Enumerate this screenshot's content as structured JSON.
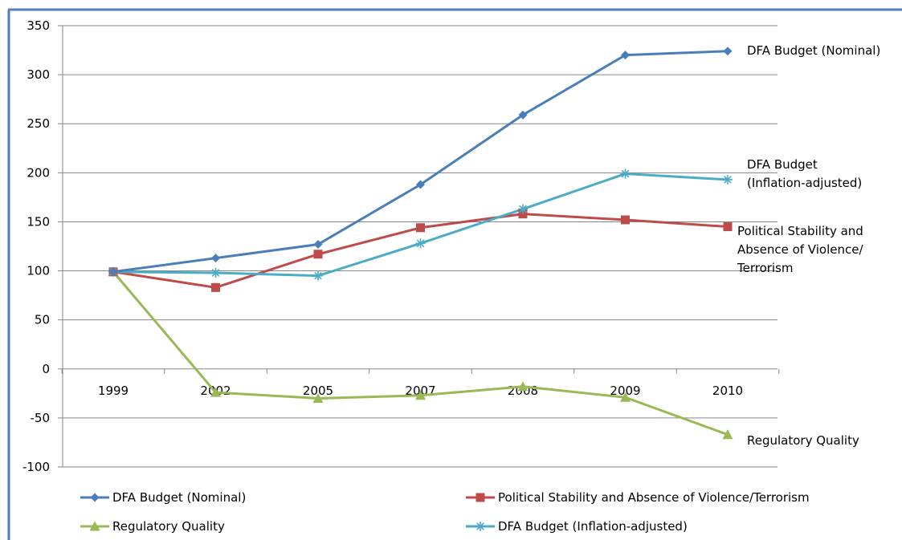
{
  "chart_data": {
    "type": "line",
    "categories": [
      "1999",
      "2002",
      "2005",
      "2007",
      "2008",
      "2009",
      "2010"
    ],
    "ylim": [
      -100,
      350
    ],
    "yticks": [
      -100,
      -50,
      0,
      50,
      100,
      150,
      200,
      250,
      300,
      350
    ],
    "grid": true,
    "legend_position": "bottom",
    "series": [
      {
        "name": "DFA Budget (Nominal)",
        "end_label": [
          "DFA Budget (Nominal)"
        ],
        "marker": "diamond",
        "color": "#4A7EBB",
        "values": [
          99,
          113,
          127,
          188,
          259,
          320,
          324
        ]
      },
      {
        "name": "Political Stability and Absence of Violence/Terrorism",
        "end_label": [
          "Political Stability and",
          "Absence of Violence/",
          "Terrorism"
        ],
        "marker": "square",
        "color": "#BE4B48",
        "values": [
          99,
          83,
          117,
          144,
          158,
          152,
          145
        ]
      },
      {
        "name": "Regulatory Quality",
        "end_label": [
          "Regulatory Quality"
        ],
        "marker": "triangle",
        "color": "#98B954",
        "values": [
          99,
          -24,
          -30,
          -27,
          -18,
          -29,
          -67
        ]
      },
      {
        "name": "DFA Budget (Inflation-adjusted)",
        "end_label": [
          "DFA Budget",
          "(Inflation-adjusted)"
        ],
        "marker": "asterisk",
        "color": "#4BACC6",
        "values": [
          99,
          98,
          95,
          128,
          163,
          199,
          193
        ]
      }
    ]
  }
}
